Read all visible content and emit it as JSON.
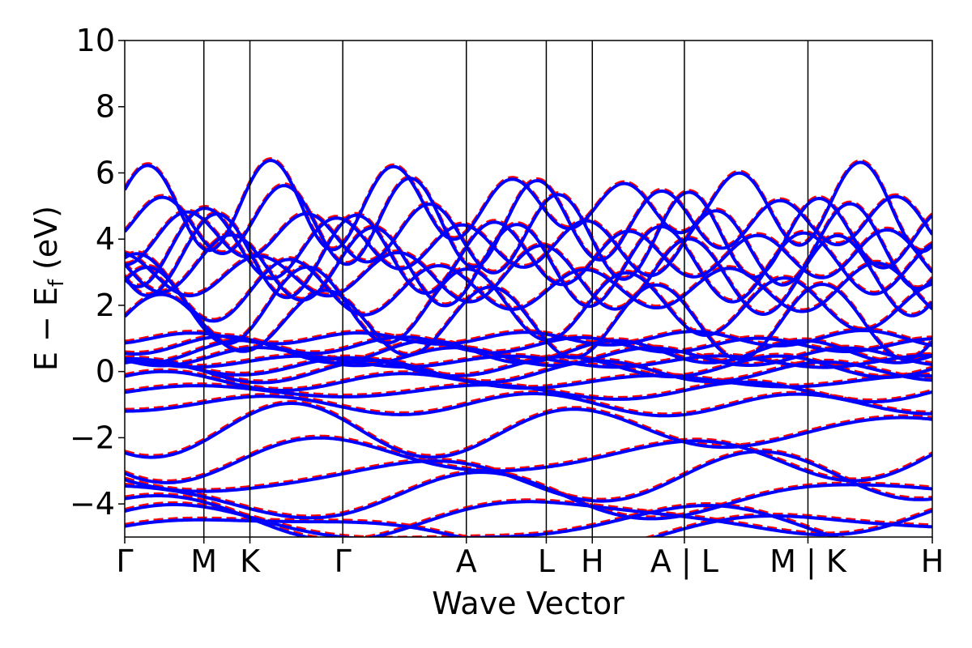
{
  "chart_data": {
    "type": "line",
    "xlabel": "Wave Vector",
    "ylabel_parts": {
      "main": "E − E",
      "sub": "f",
      "unit": " (eV)"
    },
    "ylim": [
      -5,
      10
    ],
    "yticks": [
      "−4",
      "−2",
      "0",
      "2",
      "4",
      "6",
      "8",
      "10"
    ],
    "ytick_values": [
      -4,
      -2,
      0,
      2,
      4,
      6,
      8,
      10
    ],
    "xlim": [
      0,
      10
    ],
    "kpoint_labels": [
      {
        "label": "Γ",
        "x": 0.0
      },
      {
        "label": "M",
        "x": 0.98
      },
      {
        "label": "K",
        "x": 1.55
      },
      {
        "label": "Γ",
        "x": 2.7
      },
      {
        "label": "A",
        "x": 4.23
      },
      {
        "label": "L",
        "x": 5.22
      },
      {
        "label": "H",
        "x": 5.79
      },
      {
        "label": "A | L",
        "x": 6.93
      },
      {
        "label": "M | K",
        "x": 8.46
      },
      {
        "label": "H",
        "x": 10.0
      }
    ],
    "series": [
      {
        "name": "",
        "color": "#ff0000",
        "style": "dashed"
      },
      {
        "name": "",
        "color": "#0000ff",
        "style": "solid"
      }
    ],
    "grid": false,
    "legend": "none"
  }
}
